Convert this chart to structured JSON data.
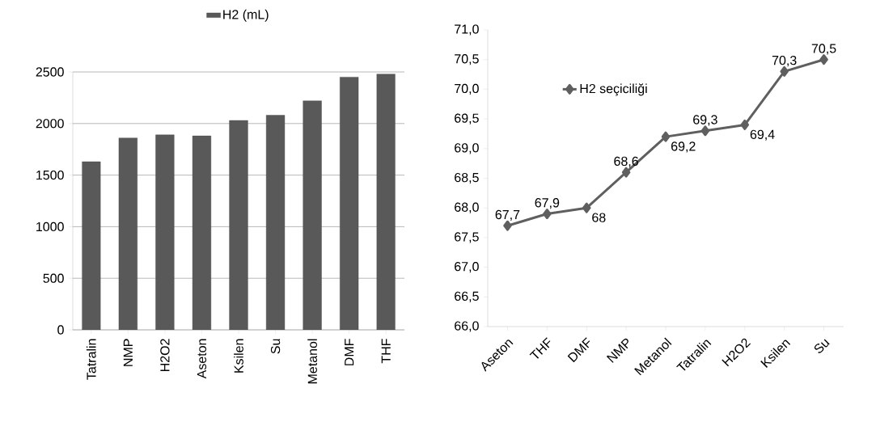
{
  "chart_data": [
    {
      "type": "bar",
      "categories": [
        "Tatralin",
        "NMP",
        "H2O2",
        "Aseton",
        "Ksilen",
        "Su",
        "Metanol",
        "DMF",
        "THF"
      ],
      "series": [
        {
          "name": "H2 (mL)",
          "color": "#595959",
          "values": [
            1630,
            1860,
            1890,
            1880,
            2030,
            2080,
            2220,
            2450,
            2480
          ]
        }
      ],
      "ylim": [
        0,
        2500
      ],
      "yticks": [
        0,
        500,
        1000,
        1500,
        2000,
        2500
      ],
      "grid": "y",
      "legend": "top"
    },
    {
      "type": "line",
      "categories": [
        "Aseton",
        "THF",
        "DMF",
        "NMP",
        "Metanol",
        "Tatralin",
        "H2O2",
        "Ksilen",
        "Su"
      ],
      "series": [
        {
          "name": "H2 seçiciliği",
          "color": "#5f5f5f",
          "values": [
            67.7,
            67.9,
            68,
            68.6,
            69.2,
            69.3,
            69.4,
            70.3,
            70.5
          ],
          "value_labels": [
            "67,7",
            "67,9",
            "68",
            "68,6",
            "69,2",
            "69,3",
            "69,4",
            "70,3",
            "70,5"
          ]
        }
      ],
      "ylim": [
        66,
        71
      ],
      "yticks": [
        {
          "value": 66,
          "label": "66,0"
        },
        {
          "value": 66.5,
          "label": "66,5"
        },
        {
          "value": 67,
          "label": "67,0"
        },
        {
          "value": 67.5,
          "label": "67,5"
        },
        {
          "value": 68,
          "label": "68,0"
        },
        {
          "value": 68.5,
          "label": "68,5"
        },
        {
          "value": 69,
          "label": "69,0"
        },
        {
          "value": 69.5,
          "label": "69,5"
        },
        {
          "value": 70,
          "label": "70,0"
        },
        {
          "value": 70.5,
          "label": "70,5"
        },
        {
          "value": 71,
          "label": "71,0"
        }
      ],
      "marker": "diamond",
      "line_style": "solid",
      "legend": "top left"
    }
  ]
}
